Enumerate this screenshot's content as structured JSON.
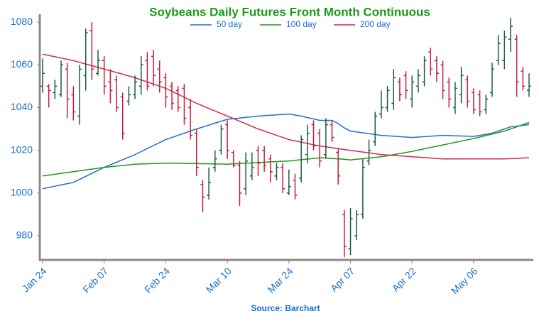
{
  "chart_data": {
    "type": "ohlc",
    "title": "Soybeans Daily Futures Front Month Continuous",
    "source": "Source: Barchart",
    "categories": [
      "Jan 24",
      null,
      null,
      null,
      null,
      null,
      null,
      null,
      null,
      null,
      "Feb 07",
      null,
      null,
      null,
      null,
      null,
      null,
      null,
      null,
      null,
      "Feb 24",
      null,
      null,
      null,
      null,
      null,
      null,
      null,
      null,
      null,
      "Mar 10",
      null,
      null,
      null,
      null,
      null,
      null,
      null,
      null,
      null,
      "Mar 24",
      null,
      null,
      null,
      null,
      null,
      null,
      null,
      null,
      null,
      "Apr 07",
      null,
      null,
      null,
      null,
      null,
      null,
      null,
      null,
      null,
      "Apr 22",
      null,
      null,
      null,
      null,
      null,
      null,
      null,
      null,
      null,
      "May 06",
      null,
      null,
      null,
      null,
      null,
      null,
      null,
      null,
      null
    ],
    "open": [
      1050,
      1050,
      1047,
      1046,
      1058,
      1046,
      1036,
      1055,
      1076,
      1056,
      1062,
      1052,
      1053,
      1045,
      1043,
      1046,
      1050,
      1062,
      1064,
      1058,
      1054,
      1050,
      1048,
      1049,
      1040,
      1028,
      1004,
      999,
      1012,
      1020,
      1032,
      1019,
      1013,
      1002,
      1008,
      1020,
      1020,
      1016,
      1008,
      1012,
      1000,
      1006,
      1007,
      1018,
      1032,
      1028,
      1018,
      1032,
      1019,
      990,
      974,
      980,
      990,
      1015,
      1024,
      1037,
      1040,
      1042,
      1052,
      1055,
      1044,
      1050,
      1052,
      1066,
      1062,
      1060,
      1052,
      1040,
      1046,
      1053,
      1047,
      1046,
      1039,
      1047,
      1062,
      1062,
      1072,
      1072,
      1057,
      1048
    ],
    "high": [
      1063,
      1051,
      1053,
      1062,
      1061,
      1050,
      1060,
      1077,
      1080,
      1067,
      1064,
      1058,
      1055,
      1047,
      1050,
      1055,
      1064,
      1066,
      1067,
      1062,
      1056,
      1052,
      1050,
      1051,
      1044,
      1030,
      1006,
      1012,
      1020,
      1032,
      1034,
      1020,
      1015,
      1019,
      1019,
      1022,
      1022,
      1018,
      1014,
      1014,
      1011,
      1009,
      1027,
      1032,
      1034,
      1030,
      1035,
      1034,
      1021,
      992,
      993,
      992,
      1016,
      1025,
      1038,
      1048,
      1050,
      1058,
      1054,
      1057,
      1055,
      1058,
      1064,
      1068,
      1064,
      1062,
      1054,
      1052,
      1059,
      1055,
      1049,
      1048,
      1046,
      1061,
      1074,
      1076,
      1082,
      1074,
      1059,
      1056
    ],
    "low": [
      1047,
      1040,
      1044,
      1045,
      1035,
      1034,
      1032,
      1048,
      1053,
      1055,
      1046,
      1042,
      1038,
      1025,
      1041,
      1044,
      1046,
      1048,
      1050,
      1047,
      1040,
      1039,
      1038,
      1032,
      1025,
      1008,
      991,
      997,
      1010,
      1018,
      1016,
      1012,
      994,
      999,
      1006,
      1008,
      1010,
      1005,
      1006,
      1000,
      999,
      997,
      1005,
      1014,
      1020,
      1012,
      1016,
      1024,
      1004,
      970,
      971,
      978,
      988,
      1013,
      1022,
      1035,
      1038,
      1039,
      1043,
      1044,
      1040,
      1047,
      1050,
      1055,
      1052,
      1044,
      1040,
      1037,
      1042,
      1040,
      1037,
      1036,
      1037,
      1045,
      1060,
      1058,
      1066,
      1045,
      1048,
      1045
    ],
    "close": [
      1056,
      1048,
      1050,
      1060,
      1044,
      1038,
      1058,
      1075,
      1058,
      1062,
      1050,
      1048,
      1040,
      1028,
      1046,
      1052,
      1060,
      1050,
      1055,
      1052,
      1045,
      1042,
      1040,
      1035,
      1027,
      1012,
      998,
      1005,
      1016,
      1030,
      1020,
      1013,
      1000,
      1015,
      1012,
      1014,
      1013,
      1010,
      1012,
      1002,
      1003,
      999,
      1025,
      1028,
      1022,
      1015,
      1032,
      1026,
      1008,
      975,
      988,
      990,
      1012,
      1020,
      1036,
      1040,
      1048,
      1054,
      1046,
      1048,
      1052,
      1055,
      1062,
      1058,
      1056,
      1048,
      1044,
      1049,
      1055,
      1043,
      1039,
      1038,
      1044,
      1058,
      1070,
      1073,
      1078,
      1052,
      1050,
      1050
    ],
    "up_color": "#1d5c40",
    "down_color": "#c41e3a",
    "series": [
      {
        "name": "50 day",
        "color": "#1f6fd6",
        "values": [
          1002,
          1002.6,
          1003.2,
          1003.8,
          1004.4,
          1005,
          1006.4,
          1007.8,
          1009.2,
          1010.6,
          1012,
          1013.2,
          1014.4,
          1015.6,
          1016.8,
          1018,
          1019.4,
          1020.8,
          1022.2,
          1023.6,
          1025,
          1026,
          1027,
          1028,
          1029,
          1030,
          1030.9,
          1031.8,
          1032.7,
          1033.6,
          1034.5,
          1034.8,
          1035.1,
          1035.4,
          1035.7,
          1036,
          1036.2,
          1036.4,
          1036.6,
          1036.8,
          1037,
          1036.5,
          1036,
          1035.3,
          1034.7,
          1034,
          1034,
          1034,
          1032.5,
          1030.5,
          1029,
          1028.6,
          1028.2,
          1027.8,
          1027.4,
          1027,
          1026.8,
          1026.6,
          1026.4,
          1026.2,
          1026,
          1026.2,
          1026.4,
          1026.6,
          1026.8,
          1027,
          1026.9,
          1026.8,
          1026.7,
          1026.6,
          1026.5,
          1027,
          1027.5,
          1028,
          1029,
          1030,
          1031,
          1031.3,
          1031.7,
          1032
        ]
      },
      {
        "name": "100 day",
        "color": "#1a9a1a",
        "values": [
          1008,
          1008.4,
          1008.8,
          1009.2,
          1009.6,
          1010,
          1010.4,
          1010.8,
          1011.2,
          1011.6,
          1012,
          1012.3,
          1012.6,
          1012.9,
          1013.2,
          1013.5,
          1013.6,
          1013.7,
          1013.8,
          1013.9,
          1014,
          1014,
          1013.9,
          1013.9,
          1013.8,
          1013.8,
          1013.7,
          1013.7,
          1013.6,
          1013.6,
          1013.5,
          1013.7,
          1013.8,
          1014,
          1014.1,
          1014.3,
          1014.4,
          1014.6,
          1014.7,
          1014.9,
          1015,
          1015.3,
          1015.6,
          1015.9,
          1016.2,
          1016.5,
          1016.4,
          1016.2,
          1016,
          1015.8,
          1015.5,
          1015.8,
          1016.1,
          1016.4,
          1016.7,
          1017,
          1017.5,
          1018,
          1018.5,
          1019,
          1019.5,
          1020.1,
          1020.7,
          1021.3,
          1021.9,
          1022.5,
          1023.1,
          1023.7,
          1024.3,
          1024.9,
          1025.5,
          1026.2,
          1026.9,
          1027.6,
          1028.3,
          1029,
          1030,
          1031,
          1032,
          1033
        ]
      },
      {
        "name": "200 day",
        "color": "#d42a4a",
        "values": [
          1065,
          1064.4,
          1063.8,
          1063.2,
          1062.6,
          1062,
          1061.2,
          1060.4,
          1059.6,
          1058.8,
          1058,
          1057.2,
          1056.4,
          1055.6,
          1054.8,
          1054,
          1053,
          1052,
          1051,
          1050,
          1049,
          1047.6,
          1046.2,
          1044.8,
          1043.4,
          1042,
          1040.8,
          1039.6,
          1038.4,
          1037.2,
          1036,
          1034.8,
          1033.6,
          1032.4,
          1031.2,
          1030,
          1029,
          1028,
          1027,
          1026,
          1025,
          1024.4,
          1023.8,
          1023.2,
          1022.6,
          1022,
          1021.6,
          1021.2,
          1020.8,
          1020.4,
          1020,
          1019.6,
          1019.2,
          1018.8,
          1018.4,
          1018,
          1017.8,
          1017.6,
          1017.4,
          1017.2,
          1017,
          1016.8,
          1016.6,
          1016.4,
          1016.2,
          1016,
          1016,
          1016,
          1016,
          1016,
          1016,
          1016,
          1016,
          1016,
          1016,
          1016,
          1016.1,
          1016.2,
          1016.4,
          1016.5
        ]
      }
    ],
    "ylim": [
      968.7,
      1083.7
    ],
    "yticks": [
      980,
      1000,
      1020,
      1040,
      1060,
      1080
    ]
  }
}
